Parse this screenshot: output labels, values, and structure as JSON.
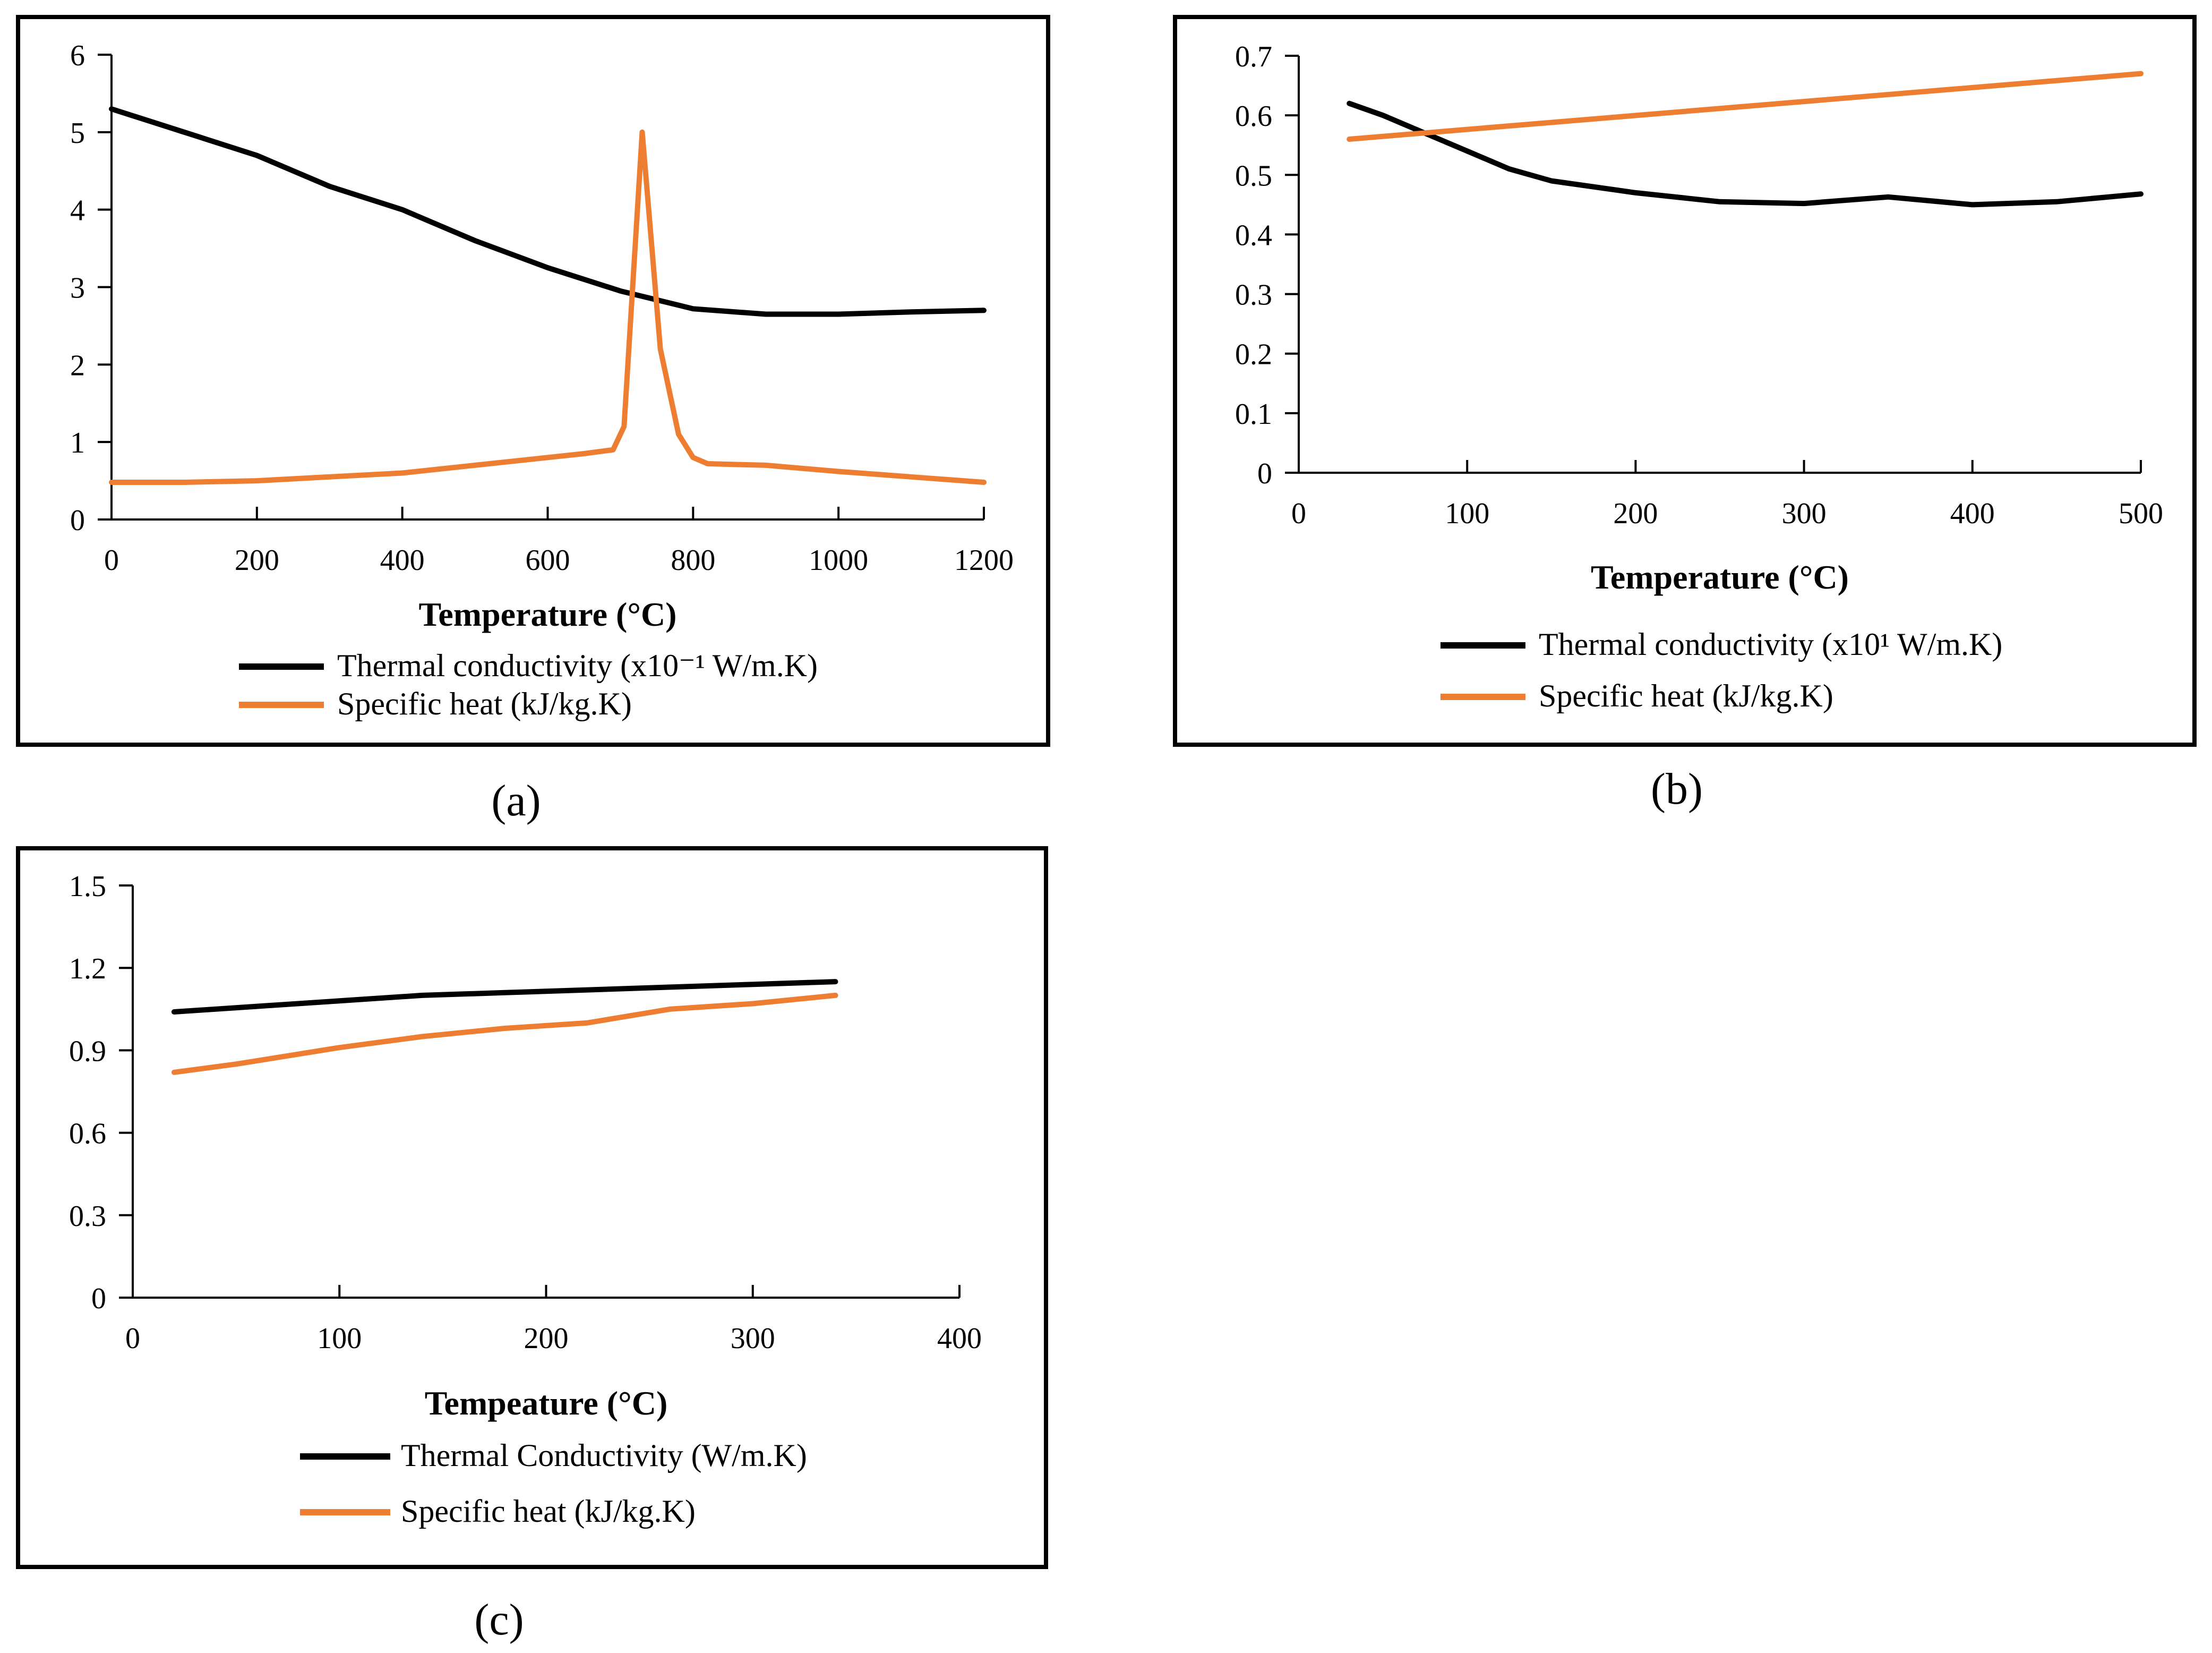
{
  "colors": {
    "conductivity": "#000000",
    "specific_heat": "#ED7D31",
    "frame": "#000000"
  },
  "chart_data": [
    {
      "id": "a",
      "type": "line",
      "caption": "(a)",
      "xlabel": "Temperature (°C)",
      "ylabel": "",
      "xlim": [
        0,
        1200
      ],
      "ylim": [
        0,
        6
      ],
      "xticks": [
        0,
        200,
        400,
        600,
        800,
        1000,
        1200
      ],
      "yticks": [
        0,
        1,
        2,
        3,
        4,
        5,
        6
      ],
      "xtick_labels": [
        "0",
        "200",
        "400",
        "600",
        "800",
        "1000",
        "1200"
      ],
      "ytick_labels": [
        "0",
        "1",
        "2",
        "3",
        "4",
        "5",
        "6"
      ],
      "legend": "bottom",
      "series": [
        {
          "name": "Thermal conductivity (x10⁻¹ W/m.K)",
          "color": "#000000",
          "x": [
            0,
            100,
            200,
            300,
            400,
            500,
            600,
            700,
            800,
            900,
            1000,
            1100,
            1200
          ],
          "y": [
            5.3,
            5.0,
            4.7,
            4.3,
            4.0,
            3.6,
            3.25,
            2.95,
            2.72,
            2.65,
            2.65,
            2.68,
            2.7
          ]
        },
        {
          "name": "Specific heat (kJ/kg.K)",
          "color": "#ED7D31",
          "x": [
            0,
            100,
            200,
            300,
            400,
            500,
            600,
            650,
            690,
            705,
            730,
            755,
            780,
            800,
            820,
            900,
            1000,
            1100,
            1200
          ],
          "y": [
            0.48,
            0.48,
            0.5,
            0.55,
            0.6,
            0.7,
            0.8,
            0.85,
            0.9,
            1.2,
            5.0,
            2.2,
            1.1,
            0.8,
            0.72,
            0.7,
            0.62,
            0.55,
            0.48
          ]
        }
      ]
    },
    {
      "id": "b",
      "type": "line",
      "caption": "(b)",
      "xlabel": "Temperature (°C)",
      "ylabel": "",
      "xlim": [
        0,
        500
      ],
      "ylim": [
        0,
        0.7
      ],
      "xticks": [
        0,
        100,
        200,
        300,
        400,
        500
      ],
      "yticks": [
        0,
        0.1,
        0.2,
        0.3,
        0.4,
        0.5,
        0.6,
        0.7
      ],
      "xtick_labels": [
        "0",
        "100",
        "200",
        "300",
        "400",
        "500"
      ],
      "ytick_labels": [
        "0",
        "0.1",
        "0.2",
        "0.3",
        "0.4",
        "0.5",
        "0.6",
        "0.7"
      ],
      "legend": "bottom",
      "series": [
        {
          "name": "Thermal conductivity (x10¹ W/m.K)",
          "color": "#000000",
          "x": [
            30,
            50,
            75,
            100,
            125,
            150,
            200,
            250,
            300,
            350,
            400,
            450,
            500
          ],
          "y": [
            0.62,
            0.6,
            0.57,
            0.54,
            0.51,
            0.49,
            0.47,
            0.455,
            0.452,
            0.463,
            0.45,
            0.455,
            0.468
          ]
        },
        {
          "name": "Specific heat (kJ/kg.K)",
          "color": "#ED7D31",
          "x": [
            30,
            500
          ],
          "y": [
            0.56,
            0.67
          ]
        }
      ]
    },
    {
      "id": "c",
      "type": "line",
      "caption": "(c)",
      "xlabel": "Tempeature (°C)",
      "ylabel": "",
      "xlim": [
        0,
        400
      ],
      "ylim": [
        0,
        1.5
      ],
      "xticks": [
        0,
        100,
        200,
        300,
        400
      ],
      "yticks": [
        0,
        0.3,
        0.6,
        0.9,
        1.2,
        1.5
      ],
      "xtick_labels": [
        "0",
        "100",
        "200",
        "300",
        "400"
      ],
      "ytick_labels": [
        "0",
        "0.3",
        "0.6",
        "0.9",
        "1.2",
        "1.5"
      ],
      "legend": "bottom",
      "series": [
        {
          "name": "Thermal Conductivity (W/m.K)",
          "color": "#000000",
          "x": [
            20,
            60,
            100,
            140,
            180,
            220,
            260,
            300,
            340
          ],
          "y": [
            1.04,
            1.06,
            1.08,
            1.1,
            1.11,
            1.12,
            1.13,
            1.14,
            1.15
          ]
        },
        {
          "name": "Specific heat (kJ/kg.K)",
          "color": "#ED7D31",
          "x": [
            20,
            50,
            100,
            140,
            180,
            220,
            260,
            300,
            340
          ],
          "y": [
            0.82,
            0.85,
            0.91,
            0.95,
            0.98,
            1.0,
            1.05,
            1.07,
            1.1
          ]
        }
      ]
    }
  ]
}
